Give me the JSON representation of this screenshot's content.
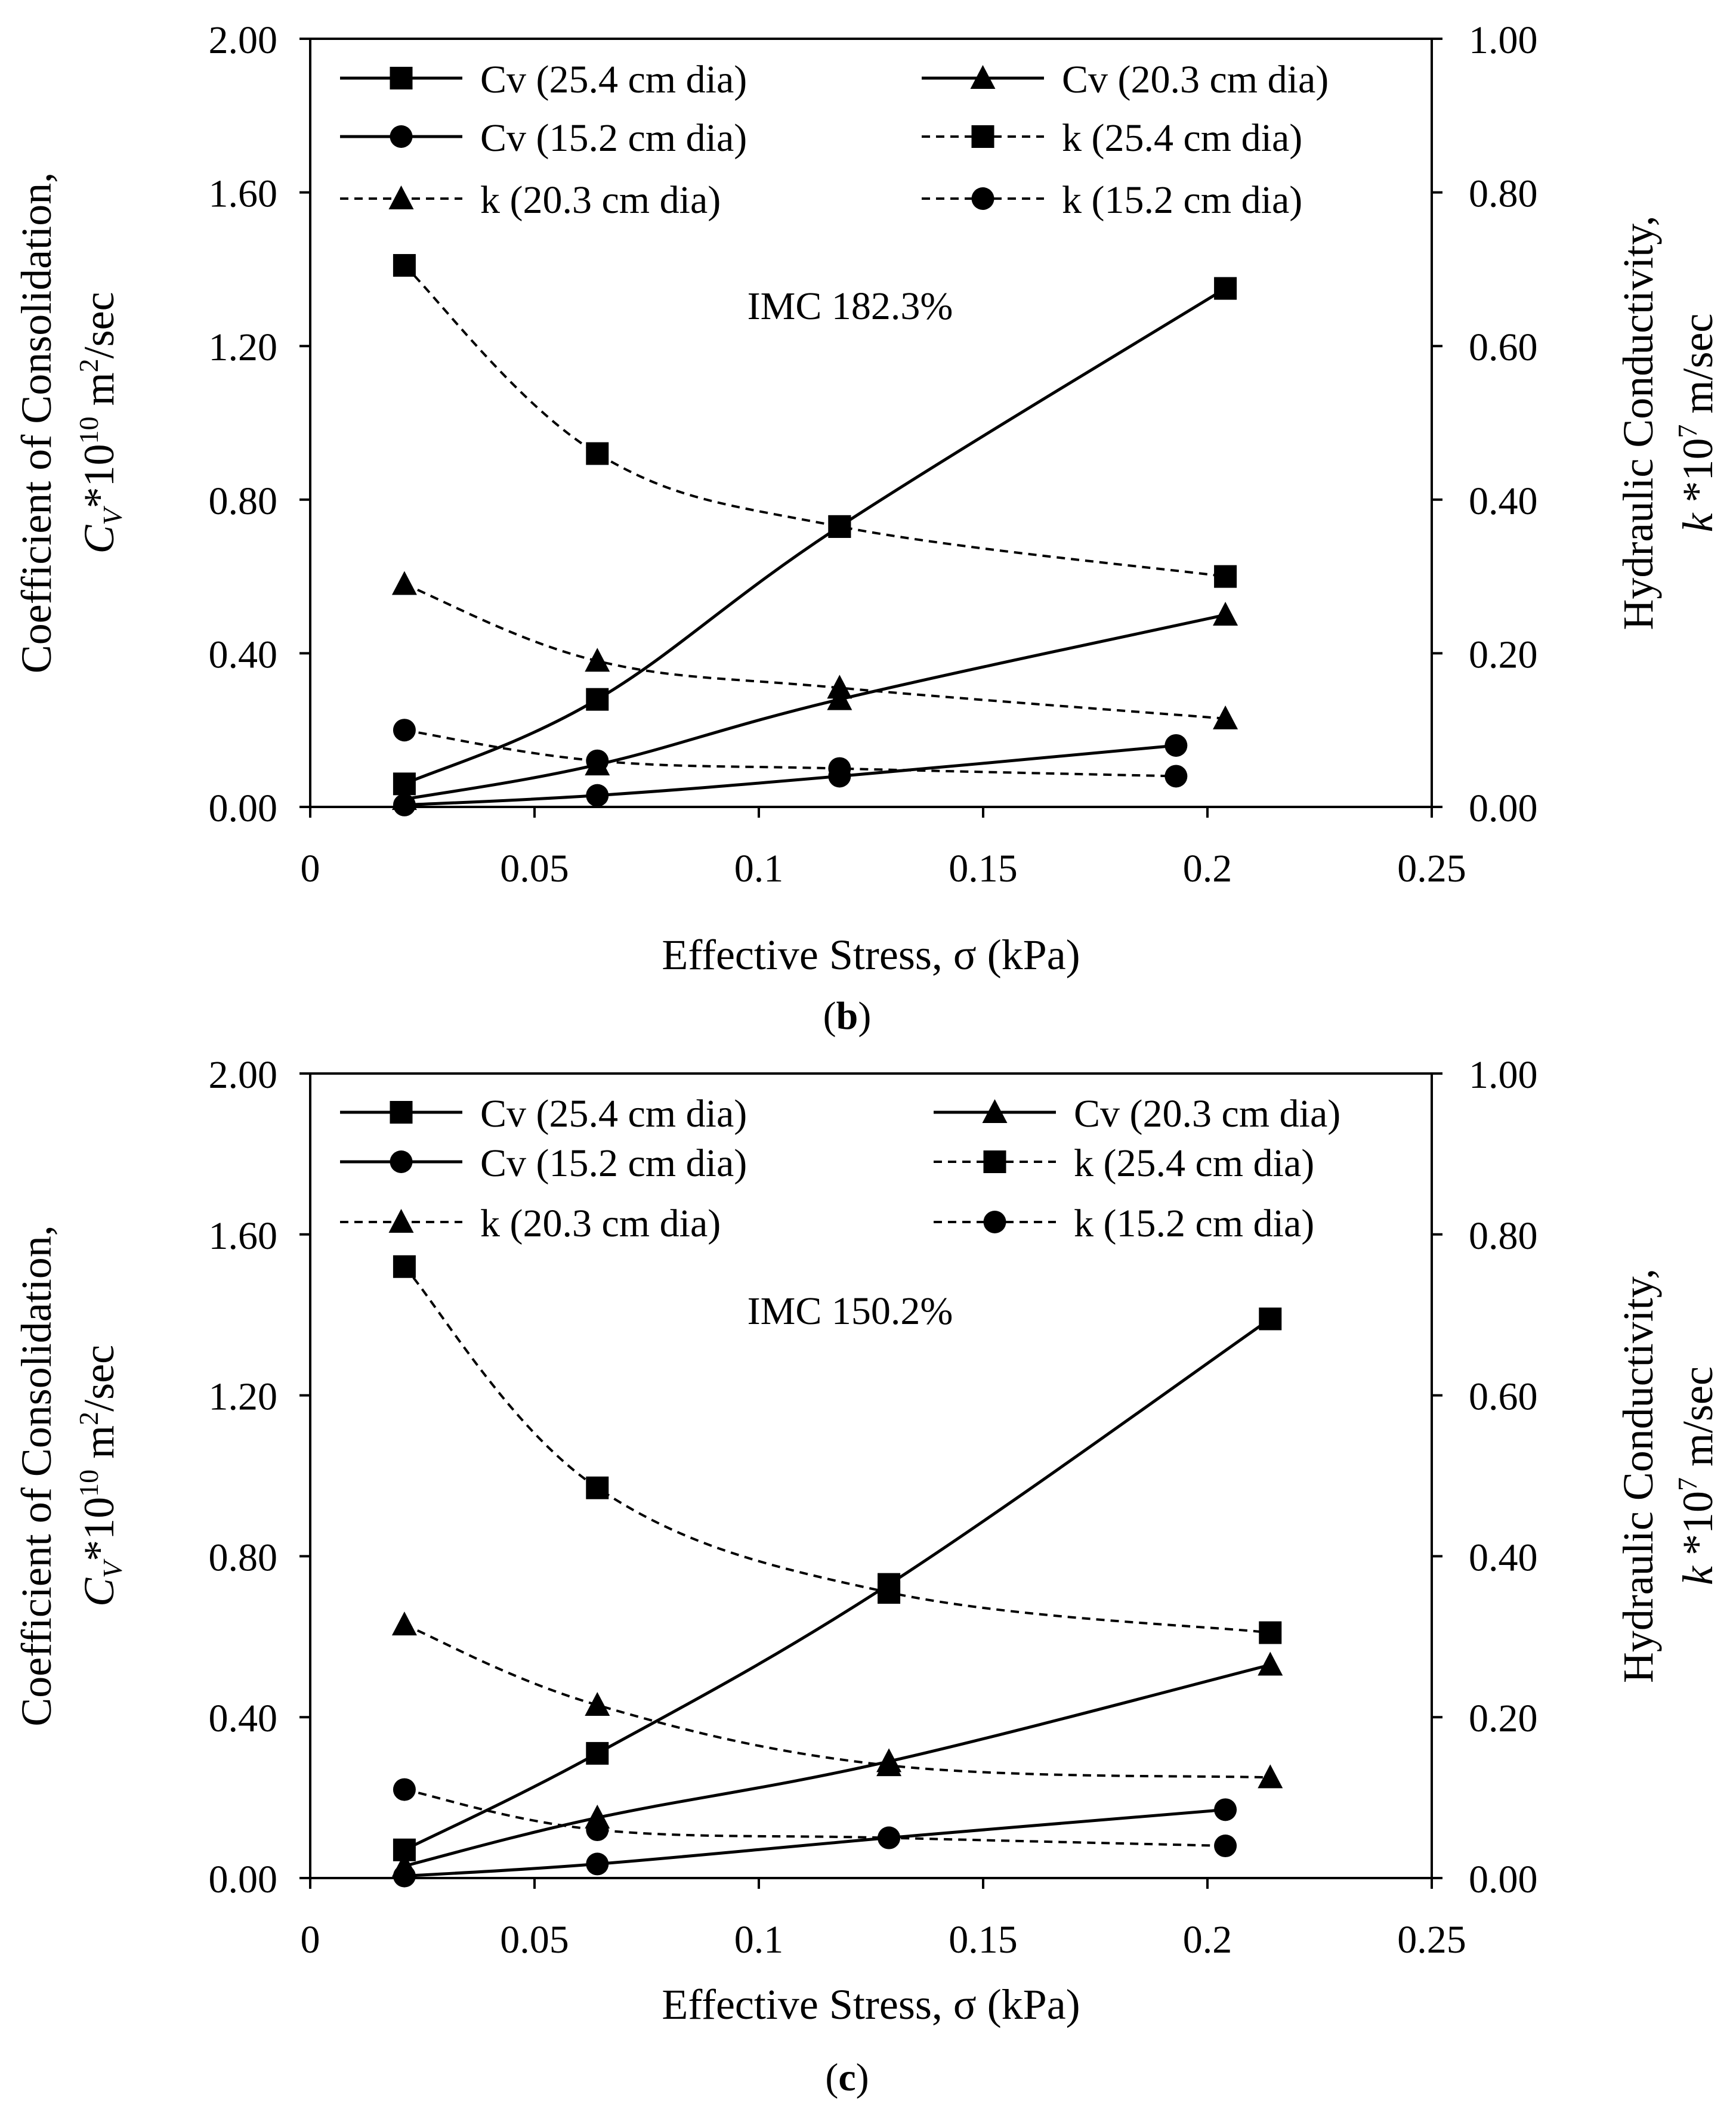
{
  "chart_data": [
    {
      "type": "line",
      "panel_label": "b",
      "annotation": "IMC 182.3%",
      "xlabel": "Effective Stress, σ (kPa)",
      "ylabel_left_line1": "Coefficient of Consolidation,",
      "ylabel_left_line2": "C_V*10^10 m²/sec",
      "ylabel_right_line1": "Hydraulic Conductivity,",
      "ylabel_right_line2": "k*10^7 m/sec",
      "xlim": [
        0,
        0.25
      ],
      "xticks": [
        0,
        0.05,
        0.1,
        0.15,
        0.2,
        0.25
      ],
      "xtick_labels": [
        "0",
        "0.05",
        "0.1",
        "0.15",
        "0.2",
        "0.25"
      ],
      "ylim_left": [
        0,
        2.0
      ],
      "yticks_left_labels": [
        "0.00",
        "0.40",
        "0.80",
        "1.20",
        "1.60",
        "2.00"
      ],
      "ylim_right": [
        0,
        1.0
      ],
      "yticks_right_labels": [
        "0.00",
        "0.20",
        "0.40",
        "0.60",
        "0.80",
        "1.00"
      ],
      "legend": [
        "Cv (25.4 cm dia)",
        "Cv (20.3 cm dia)",
        "Cv (15.2 cm dia)",
        "k (25.4 cm dia)",
        "k (20.3 cm dia)",
        "k (15.2 cm dia)"
      ],
      "series": [
        {
          "name": "Cv (25.4 cm dia)",
          "axis": "left",
          "marker": "square",
          "dash": false,
          "x": [
            0.021,
            0.064,
            0.118,
            0.204
          ],
          "y": [
            0.06,
            0.28,
            0.73,
            1.35
          ]
        },
        {
          "name": "Cv (20.3 cm dia)",
          "axis": "left",
          "marker": "triangle",
          "dash": false,
          "x": [
            0.021,
            0.064,
            0.118,
            0.204
          ],
          "y": [
            0.02,
            0.11,
            0.28,
            0.5
          ]
        },
        {
          "name": "Cv (15.2 cm dia)",
          "axis": "left",
          "marker": "circle",
          "dash": false,
          "x": [
            0.021,
            0.064,
            0.118,
            0.193
          ],
          "y": [
            0.005,
            0.03,
            0.08,
            0.16
          ]
        },
        {
          "name": "k (25.4 cm dia)",
          "axis": "right",
          "marker": "square",
          "dash": true,
          "x": [
            0.021,
            0.064,
            0.118,
            0.204
          ],
          "y": [
            0.705,
            0.46,
            0.365,
            0.3
          ]
        },
        {
          "name": "k (20.3 cm dia)",
          "axis": "right",
          "marker": "triangle",
          "dash": true,
          "x": [
            0.021,
            0.064,
            0.118,
            0.204
          ],
          "y": [
            0.29,
            0.19,
            0.155,
            0.115
          ]
        },
        {
          "name": "k (15.2 cm dia)",
          "axis": "right",
          "marker": "circle",
          "dash": true,
          "x": [
            0.021,
            0.064,
            0.118,
            0.193
          ],
          "y": [
            0.1,
            0.06,
            0.05,
            0.04
          ]
        }
      ]
    },
    {
      "type": "line",
      "panel_label": "c",
      "annotation": "IMC 150.2%",
      "xlabel": "Effective Stress, σ (kPa)",
      "ylabel_left_line1": "Coefficient of Consolidation,",
      "ylabel_left_line2": "C_V*10^10 m²/sec",
      "ylabel_right_line1": "Hydraulic Conductivity,",
      "ylabel_right_line2": "k*10^7 m/sec",
      "xlim": [
        0,
        0.25
      ],
      "xticks": [
        0,
        0.05,
        0.1,
        0.15,
        0.2,
        0.25
      ],
      "xtick_labels": [
        "0",
        "0.05",
        "0.1",
        "0.15",
        "0.2",
        "0.25"
      ],
      "ylim_left": [
        0,
        2.0
      ],
      "yticks_left_labels": [
        "0.00",
        "0.40",
        "0.80",
        "1.20",
        "1.60",
        "2.00"
      ],
      "ylim_right": [
        0,
        1.0
      ],
      "yticks_right_labels": [
        "0.00",
        "0.20",
        "0.40",
        "0.60",
        "0.80",
        "1.00"
      ],
      "legend": [
        "Cv (25.4 cm dia)",
        "Cv (20.3 cm dia)",
        "Cv (15.2 cm dia)",
        "k (25.4 cm dia)",
        "k (20.3 cm dia)",
        "k (15.2 cm dia)"
      ],
      "series": [
        {
          "name": "Cv (25.4 cm dia)",
          "axis": "left",
          "marker": "square",
          "dash": false,
          "x": [
            0.021,
            0.064,
            0.129,
            0.214
          ],
          "y": [
            0.07,
            0.31,
            0.73,
            1.39
          ]
        },
        {
          "name": "Cv (20.3 cm dia)",
          "axis": "left",
          "marker": "triangle",
          "dash": false,
          "x": [
            0.021,
            0.064,
            0.129,
            0.214
          ],
          "y": [
            0.03,
            0.15,
            0.29,
            0.53
          ]
        },
        {
          "name": "Cv (15.2 cm dia)",
          "axis": "left",
          "marker": "circle",
          "dash": false,
          "x": [
            0.021,
            0.064,
            0.129,
            0.204
          ],
          "y": [
            0.005,
            0.035,
            0.1,
            0.17
          ]
        },
        {
          "name": "k (25.4 cm dia)",
          "axis": "right",
          "marker": "square",
          "dash": true,
          "x": [
            0.021,
            0.064,
            0.129,
            0.214
          ],
          "y": [
            0.76,
            0.485,
            0.355,
            0.305
          ]
        },
        {
          "name": "k (20.3 cm dia)",
          "axis": "right",
          "marker": "triangle",
          "dash": true,
          "x": [
            0.021,
            0.064,
            0.129,
            0.214
          ],
          "y": [
            0.315,
            0.215,
            0.14,
            0.125
          ]
        },
        {
          "name": "k (15.2 cm dia)",
          "axis": "right",
          "marker": "circle",
          "dash": true,
          "x": [
            0.021,
            0.064,
            0.129,
            0.204
          ],
          "y": [
            0.11,
            0.06,
            0.05,
            0.04
          ]
        }
      ]
    }
  ]
}
